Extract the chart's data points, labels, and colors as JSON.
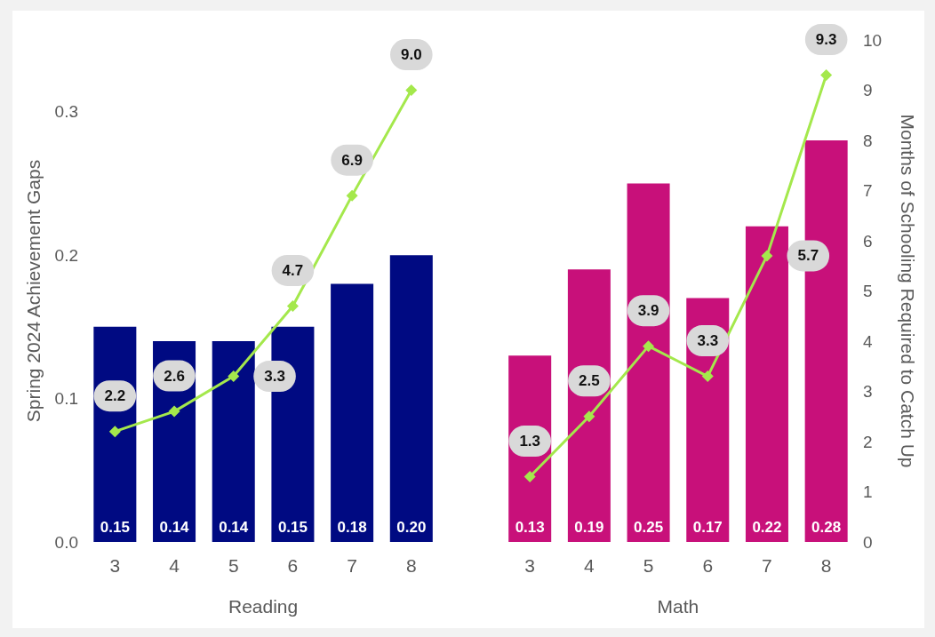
{
  "chart_data": {
    "type": "bar",
    "ylabel": "Spring 2024 Achievement Gaps",
    "y2label": "Months of Schooling Required to Catch Up",
    "categories": [
      "3",
      "4",
      "5",
      "6",
      "7",
      "8",
      null,
      "3",
      "4",
      "5",
      "6",
      "7",
      "8"
    ],
    "series": [
      {
        "values": [
          0.15,
          0.14,
          0.14,
          0.15,
          0.18,
          0.2,
          null,
          0.13,
          0.19,
          0.25,
          0.17,
          0.22,
          0.28
        ],
        "colors": [
          "#000a82",
          "#000a82",
          "#000a82",
          "#000a82",
          "#000a82",
          "#000a82",
          null,
          "#c8107a",
          "#c8107a",
          "#c8107a",
          "#c8107a",
          "#c8107a",
          "#c8107a"
        ],
        "value_labels": [
          "0.15",
          "0.14",
          "0.14",
          "0.15",
          "0.18",
          "0.20",
          null,
          "0.13",
          "0.19",
          "0.25",
          "0.17",
          "0.22",
          "0.28"
        ]
      },
      {
        "type": "line",
        "axis": "y2",
        "color": "#a4e84c",
        "marker": "diamond",
        "values": [
          2.2,
          2.6,
          3.3,
          4.7,
          6.9,
          9.0,
          null,
          1.3,
          2.5,
          3.9,
          3.3,
          5.7,
          9.3
        ],
        "value_labels": [
          "2.2",
          "2.6",
          "3.3",
          "4.7",
          "6.9",
          "9.0",
          null,
          "1.3",
          "2.5",
          "3.9",
          "3.3",
          "5.7",
          "9.3"
        ]
      }
    ],
    "ylim": [
      0,
      0.35
    ],
    "yticks": [
      {
        "value": 0,
        "label": "0.0"
      },
      {
        "value": 0.1,
        "label": "0.1"
      },
      {
        "value": 0.2,
        "label": "0.2"
      },
      {
        "value": 0.3,
        "label": "0.3"
      }
    ],
    "y2lim": [
      0,
      10
    ],
    "y2ticks": [
      0,
      1,
      2,
      3,
      4,
      5,
      6,
      7,
      8,
      9,
      10
    ],
    "annotations": [
      "Reading",
      "Math"
    ]
  }
}
